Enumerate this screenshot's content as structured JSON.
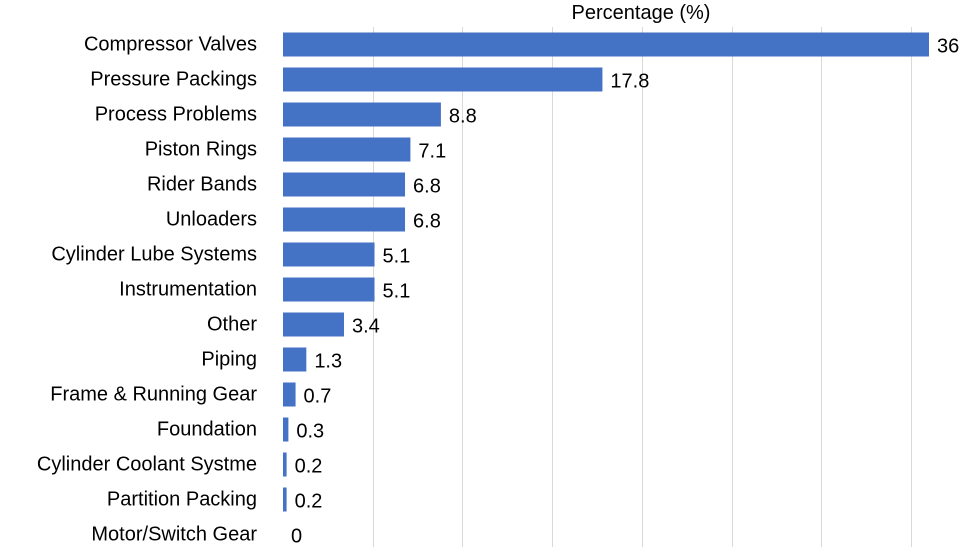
{
  "chart_data": {
    "type": "bar",
    "orientation": "horizontal",
    "title": "",
    "xlabel": "Percentage (%)",
    "xlabel_position": "top",
    "ylabel": "",
    "categories": [
      "Compressor Valves",
      "Pressure Packings",
      "Process Problems",
      "Piston Rings",
      "Rider Bands",
      "Unloaders",
      "Cylinder Lube Systems",
      "Instrumentation",
      "Other",
      "Piping",
      "Frame & Running Gear",
      "Foundation",
      "Cylinder Coolant Systme",
      "Partition Packing",
      "Motor/Switch Gear"
    ],
    "values": [
      36,
      17.8,
      8.8,
      7.1,
      6.8,
      6.8,
      5.1,
      5.1,
      3.4,
      1.3,
      0.7,
      0.3,
      0.2,
      0.2,
      0
    ],
    "value_labels": [
      "36",
      "17.8",
      "8.8",
      "7.1",
      "6.8",
      "6.8",
      "5.1",
      "5.1",
      "3.4",
      "1.3",
      "0.7",
      "0.3",
      "0.2",
      "0.2",
      "0"
    ],
    "xlim": [
      0,
      36
    ],
    "gridlines": true,
    "gridline_step": 5,
    "legend": "none",
    "bar_color": "#4472c4",
    "gridline_color": "#d9d9d9",
    "text_color": "#000000"
  }
}
